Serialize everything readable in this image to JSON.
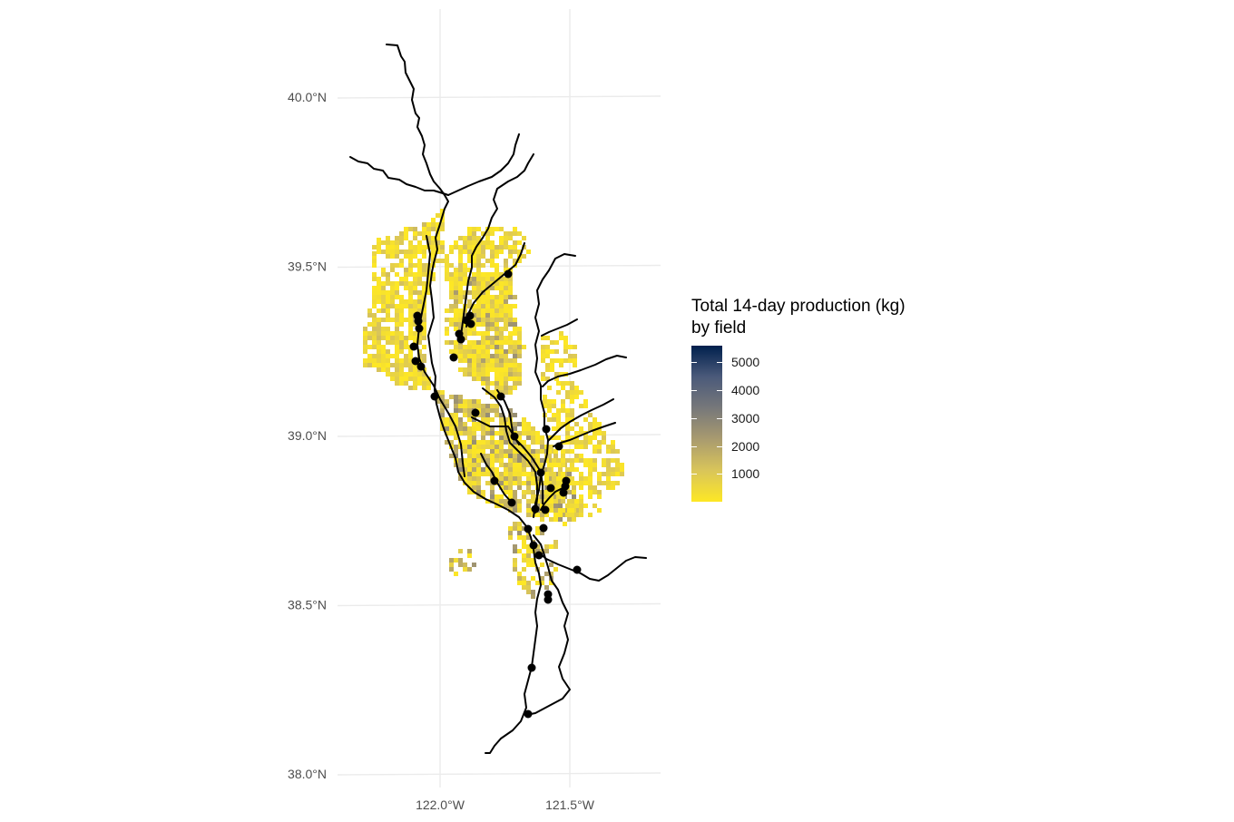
{
  "map": {
    "y_ticks": [
      {
        "label": "40.0°N",
        "lat": 40.0
      },
      {
        "label": "39.5°N",
        "lat": 39.5
      },
      {
        "label": "39.0°N",
        "lat": 39.0
      },
      {
        "label": "38.5°N",
        "lat": 38.5
      },
      {
        "label": "38.0°N",
        "lat": 38.0
      }
    ],
    "x_ticks": [
      {
        "label": "122.0°W",
        "lon": -122.0
      },
      {
        "label": "121.5°W",
        "lon": -121.5
      }
    ],
    "extent": {
      "lon_min": -122.3,
      "lon_max": -121.2,
      "lat_min": 37.97,
      "lat_max": 40.25
    },
    "river_color": "#000000",
    "site_color": "#000000",
    "grid_color": "#ebebeb"
  },
  "legend": {
    "title_line1": "Total 14-day production (kg)",
    "title_line2": "by field",
    "ticks": [
      {
        "label": "5000",
        "value": 5000
      },
      {
        "label": "4000",
        "value": 4000
      },
      {
        "label": "3000",
        "value": 3000
      },
      {
        "label": "2000",
        "value": 2000
      },
      {
        "label": "1000",
        "value": 1000
      }
    ],
    "min": 0,
    "max": 5600,
    "colors": [
      "#fde725",
      "#00204d"
    ]
  }
}
